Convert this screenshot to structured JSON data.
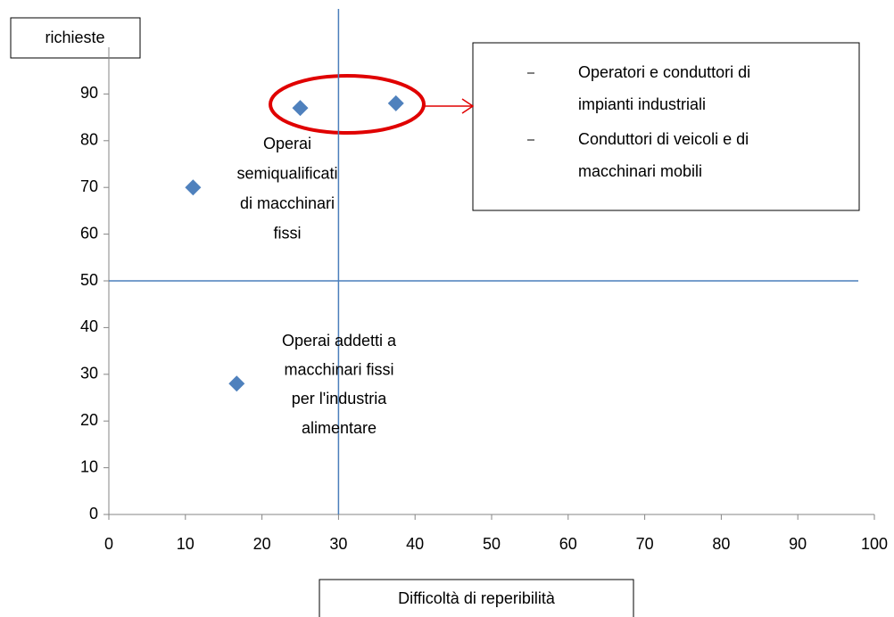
{
  "chart_data": {
    "type": "scatter",
    "series": [
      {
        "color": "#4f81bd",
        "x": [
          11,
          16.7,
          25,
          37.5
        ],
        "values": [
          70,
          28,
          87,
          88
        ]
      }
    ],
    "xlim": [
      0,
      100
    ],
    "xticks": [
      0,
      10,
      20,
      30,
      40,
      50,
      60,
      70,
      80,
      90,
      100
    ],
    "ylim": [
      0,
      100
    ],
    "yticks": [
      0,
      10,
      20,
      30,
      40,
      50,
      60,
      70,
      80,
      90
    ],
    "x_label": "Difficoltà di reperibilità",
    "y_label": "richieste",
    "reference_lines": {
      "x": 30,
      "y": 50,
      "color": "#4a7ebb"
    },
    "annotations": [
      {
        "lines": [
          "Operai",
          "semiqualificati",
          "di macchinari",
          "fissi"
        ]
      },
      {
        "lines": [
          "Operai addetti a",
          "macchinari fissi",
          "per l'industria",
          "alimentare"
        ]
      }
    ],
    "callout": {
      "items": [
        {
          "lines": [
            "Operatori e conduttori di",
            "impianti industriali"
          ]
        },
        {
          "lines": [
            "Conduttori di veicoli e di",
            "macchinari mobili"
          ]
        }
      ]
    }
  }
}
